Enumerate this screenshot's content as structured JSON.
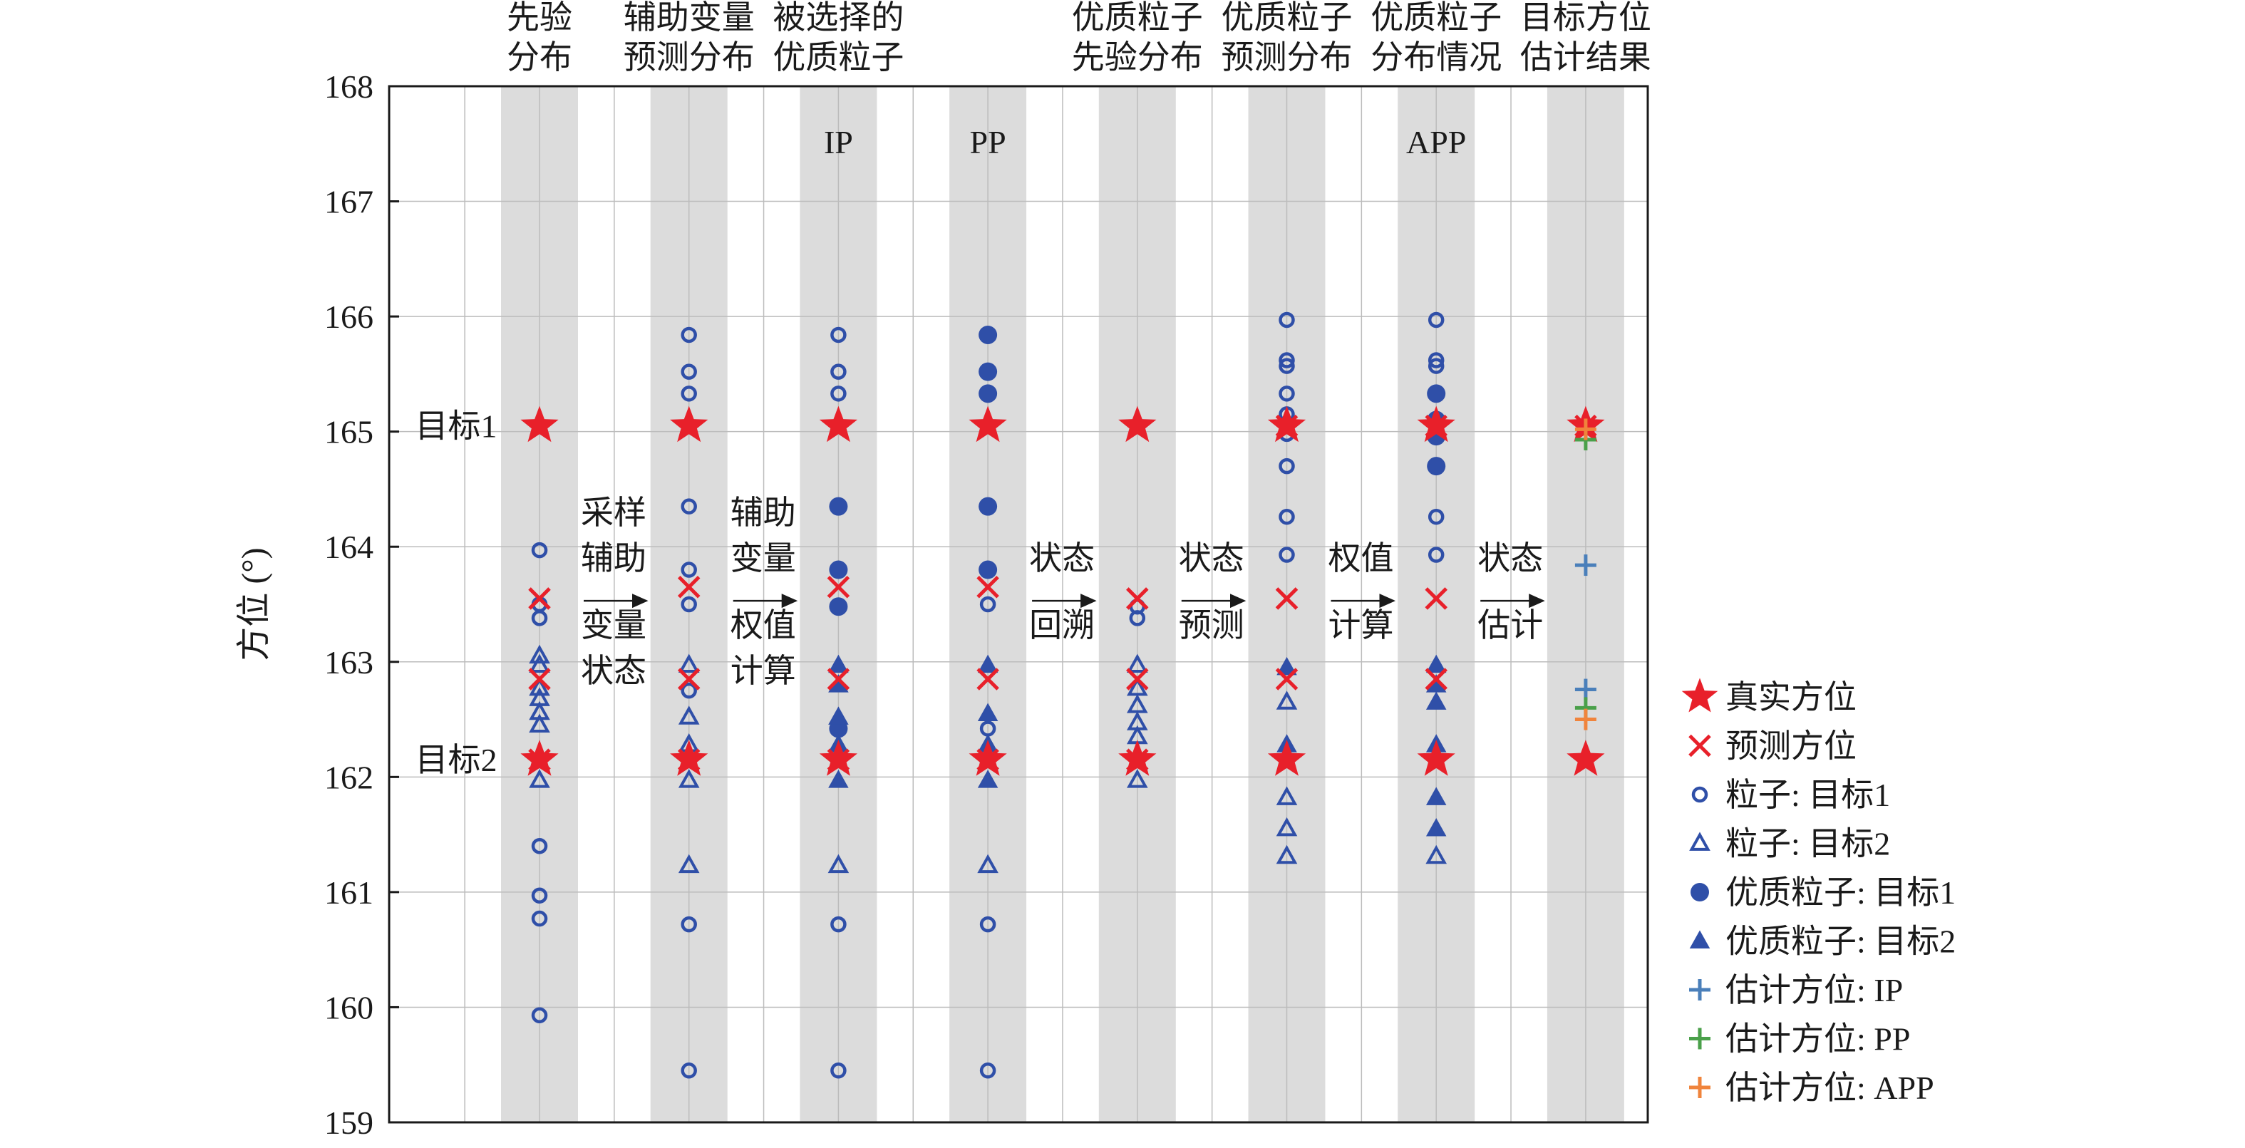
{
  "chart_data": {
    "type": "scatter",
    "ylabel": "方位 (°)",
    "ylim": [
      159,
      168
    ],
    "yticks": [
      159,
      160,
      161,
      162,
      163,
      164,
      165,
      166,
      167,
      168
    ],
    "grid": true,
    "legend_position": "right",
    "columns": [
      {
        "x": 1,
        "header": [
          "先验",
          "分布"
        ],
        "shaded": true,
        "mode": ""
      },
      {
        "x": 2,
        "header": [
          "辅助变量",
          "预测分布"
        ],
        "shaded": true,
        "mode": ""
      },
      {
        "x": 3,
        "header": [
          "被选择的",
          "优质粒子"
        ],
        "shaded": true,
        "mode": "IP"
      },
      {
        "x": 4,
        "header": [
          "",
          ""
        ],
        "shaded": true,
        "mode": "PP"
      },
      {
        "x": 5,
        "header": [
          "优质粒子",
          "先验分布"
        ],
        "shaded": true,
        "mode": ""
      },
      {
        "x": 6,
        "header": [
          "优质粒子",
          "预测分布"
        ],
        "shaded": true,
        "mode": ""
      },
      {
        "x": 7,
        "header": [
          "优质粒子",
          "分布情况"
        ],
        "shaded": true,
        "mode": "APP"
      },
      {
        "x": 8,
        "header": [
          "目标方位",
          "估计结果"
        ],
        "shaded": true,
        "mode": ""
      }
    ],
    "target_labels": [
      {
        "text": "目标1",
        "y": 165.05
      },
      {
        "text": "目标2",
        "y": 162.15
      }
    ],
    "step_labels": [
      {
        "after_column": 1,
        "lines": [
          "采样",
          "辅助",
          "变量",
          "状态"
        ]
      },
      {
        "after_column": 2,
        "lines": [
          "辅助",
          "变量",
          "权值",
          "计算"
        ]
      },
      {
        "after_column": 4,
        "lines": [
          "状态",
          "回溯"
        ]
      },
      {
        "after_column": 5,
        "lines": [
          "状态",
          "预测"
        ]
      },
      {
        "after_column": 6,
        "lines": [
          "权值",
          "计算"
        ]
      },
      {
        "after_column": 7,
        "lines": [
          "状态",
          "估计"
        ]
      }
    ],
    "series": [
      {
        "name": "真实方位",
        "marker": "star",
        "color": "#e8202a",
        "points": [
          [
            1,
            165.05
          ],
          [
            1,
            162.15
          ],
          [
            2,
            165.05
          ],
          [
            2,
            162.15
          ],
          [
            3,
            165.05
          ],
          [
            3,
            162.15
          ],
          [
            4,
            165.05
          ],
          [
            4,
            162.15
          ],
          [
            5,
            165.05
          ],
          [
            5,
            162.15
          ],
          [
            6,
            165.05
          ],
          [
            6,
            162.15
          ],
          [
            7,
            165.05
          ],
          [
            7,
            162.15
          ],
          [
            8,
            165.05
          ],
          [
            8,
            162.15
          ]
        ]
      },
      {
        "name": "预测方位",
        "marker": "x",
        "color": "#e8202a",
        "points": [
          [
            1,
            163.55
          ],
          [
            1,
            162.85
          ],
          [
            1,
            162.15
          ],
          [
            2,
            163.65
          ],
          [
            2,
            162.85
          ],
          [
            2,
            162.15
          ],
          [
            3,
            163.65
          ],
          [
            3,
            162.85
          ],
          [
            3,
            162.15
          ],
          [
            4,
            163.65
          ],
          [
            4,
            162.85
          ],
          [
            4,
            162.15
          ],
          [
            5,
            163.55
          ],
          [
            5,
            162.85
          ],
          [
            5,
            162.15
          ],
          [
            6,
            165.05
          ],
          [
            6,
            163.55
          ],
          [
            6,
            162.85
          ],
          [
            7,
            165.05
          ],
          [
            7,
            163.55
          ],
          [
            7,
            162.85
          ],
          [
            8,
            165.05
          ]
        ]
      },
      {
        "name": "粒子: 目标1",
        "marker": "circle-open",
        "color": "#2f4fa8",
        "points": [
          [
            1,
            163.97
          ],
          [
            1,
            163.5
          ],
          [
            1,
            163.38
          ],
          [
            1,
            161.4
          ],
          [
            1,
            160.97
          ],
          [
            1,
            160.77
          ],
          [
            1,
            159.93
          ],
          [
            2,
            165.84
          ],
          [
            2,
            165.52
          ],
          [
            2,
            165.33
          ],
          [
            2,
            164.35
          ],
          [
            2,
            163.8
          ],
          [
            2,
            163.5
          ],
          [
            2,
            162.75
          ],
          [
            2,
            160.72
          ],
          [
            2,
            159.45
          ],
          [
            3,
            165.84
          ],
          [
            3,
            165.52
          ],
          [
            3,
            165.33
          ],
          [
            3,
            159.45
          ],
          [
            3,
            160.72
          ],
          [
            4,
            163.5
          ],
          [
            4,
            162.42
          ],
          [
            4,
            160.72
          ],
          [
            4,
            159.45
          ],
          [
            5,
            163.38
          ],
          [
            5,
            163.48
          ],
          [
            6,
            165.97
          ],
          [
            6,
            165.62
          ],
          [
            6,
            165.57
          ],
          [
            6,
            165.33
          ],
          [
            6,
            165.15
          ],
          [
            6,
            164.98
          ],
          [
            6,
            164.7
          ],
          [
            6,
            164.26
          ],
          [
            6,
            163.93
          ],
          [
            7,
            165.97
          ],
          [
            7,
            165.62
          ],
          [
            7,
            165.57
          ],
          [
            7,
            164.26
          ],
          [
            7,
            163.93
          ]
        ]
      },
      {
        "name": "粒子: 目标2",
        "marker": "triangle-open",
        "color": "#2f4fa8",
        "points": [
          [
            1,
            163.05
          ],
          [
            1,
            162.97
          ],
          [
            1,
            162.77
          ],
          [
            1,
            162.68
          ],
          [
            1,
            162.56
          ],
          [
            1,
            162.45
          ],
          [
            1,
            161.97
          ],
          [
            2,
            162.97
          ],
          [
            2,
            162.52
          ],
          [
            2,
            162.28
          ],
          [
            2,
            161.97
          ],
          [
            2,
            161.23
          ],
          [
            3,
            161.23
          ],
          [
            4,
            161.23
          ],
          [
            5,
            162.97
          ],
          [
            5,
            162.77
          ],
          [
            5,
            162.62
          ],
          [
            5,
            162.47
          ],
          [
            5,
            162.35
          ],
          [
            5,
            161.97
          ],
          [
            6,
            161.82
          ],
          [
            6,
            161.55
          ],
          [
            6,
            161.31
          ],
          [
            6,
            162.65
          ],
          [
            7,
            161.31
          ]
        ]
      },
      {
        "name": "优质粒子: 目标1",
        "marker": "circle-filled",
        "color": "#2f4fa8",
        "points": [
          [
            3,
            164.35
          ],
          [
            3,
            163.8
          ],
          [
            3,
            163.48
          ],
          [
            3,
            162.42
          ],
          [
            4,
            165.84
          ],
          [
            4,
            165.52
          ],
          [
            4,
            165.33
          ],
          [
            4,
            164.35
          ],
          [
            4,
            163.8
          ],
          [
            7,
            165.33
          ],
          [
            7,
            165.1
          ],
          [
            7,
            164.96
          ],
          [
            7,
            164.7
          ]
        ]
      },
      {
        "name": "优质粒子: 目标2",
        "marker": "triangle-filled",
        "color": "#2f4fa8",
        "points": [
          [
            3,
            162.97
          ],
          [
            3,
            162.8
          ],
          [
            3,
            162.52
          ],
          [
            3,
            162.28
          ],
          [
            3,
            161.97
          ],
          [
            4,
            162.97
          ],
          [
            4,
            162.55
          ],
          [
            4,
            162.28
          ],
          [
            4,
            161.97
          ],
          [
            6,
            162.28
          ],
          [
            6,
            162.95
          ],
          [
            7,
            162.28
          ],
          [
            7,
            162.97
          ],
          [
            7,
            162.8
          ],
          [
            7,
            162.65
          ],
          [
            7,
            161.82
          ],
          [
            7,
            161.55
          ]
        ]
      },
      {
        "name": "估计方位: IP",
        "marker": "plus",
        "color": "#4a7fba",
        "points": [
          [
            8,
            163.84
          ],
          [
            8,
            162.76
          ]
        ]
      },
      {
        "name": "估计方位: PP",
        "marker": "plus",
        "color": "#4aa04a",
        "points": [
          [
            8,
            164.93
          ],
          [
            8,
            162.6
          ]
        ]
      },
      {
        "name": "估计方位: APP",
        "marker": "plus",
        "color": "#f0843c",
        "points": [
          [
            8,
            165.02
          ],
          [
            8,
            162.5
          ]
        ]
      }
    ]
  }
}
